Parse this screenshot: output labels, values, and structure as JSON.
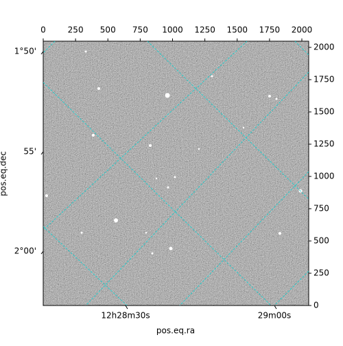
{
  "chart_data": {
    "type": "image",
    "xlabel": "pos.eq.ra",
    "ylabel": "pos.eq.dec",
    "xlim": [
      0,
      2053
    ],
    "ylim": [
      0,
      2048
    ],
    "xticks": [
      0,
      250,
      500,
      750,
      1000,
      1250,
      1500,
      1750,
      2000
    ],
    "yticks": [
      0,
      250,
      500,
      750,
      1000,
      1250,
      1500,
      1750,
      2000
    ],
    "ra_ticks": [
      "12h28m30s",
      "29m00s"
    ],
    "dec_ticks": [
      "1°50'",
      "55'",
      "2°00'"
    ],
    "grid_color": "#22cccc"
  }
}
